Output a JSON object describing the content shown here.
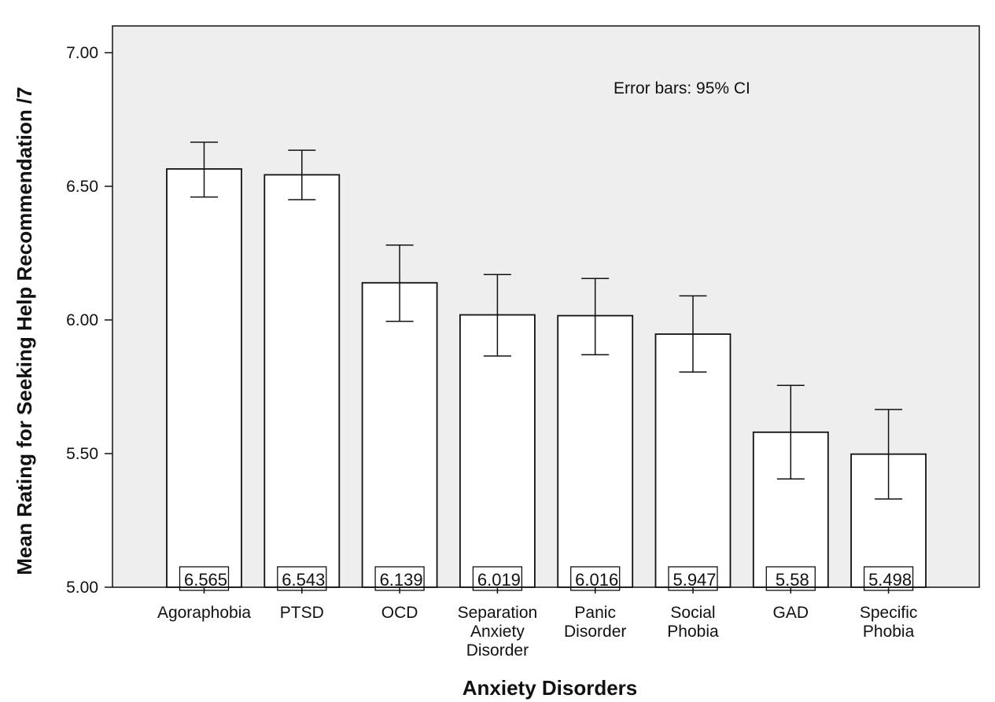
{
  "chart_data": {
    "type": "bar",
    "title": "",
    "xlabel": "Anxiety Disorders",
    "ylabel": "Mean Rating for Seeking Help Recommendation /7",
    "annotation": "Error bars: 95% CI",
    "ylim": [
      5.0,
      7.1
    ],
    "yticks": [
      {
        "value": 5.0,
        "label": "5.00"
      },
      {
        "value": 5.5,
        "label": "5.50"
      },
      {
        "value": 6.0,
        "label": "6.00"
      },
      {
        "value": 6.5,
        "label": "6.50"
      },
      {
        "value": 7.0,
        "label": "7.00"
      }
    ],
    "categories": [
      [
        "Agoraphobia"
      ],
      [
        "PTSD"
      ],
      [
        "OCD"
      ],
      [
        "Separation",
        "Anxiety",
        "Disorder"
      ],
      [
        "Panic",
        "Disorder"
      ],
      [
        "Social",
        "Phobia"
      ],
      [
        "GAD"
      ],
      [
        "Specific",
        "Phobia"
      ]
    ],
    "values": [
      6.565,
      6.543,
      6.139,
      6.019,
      6.016,
      5.947,
      5.58,
      5.498
    ],
    "value_labels": [
      "6.565",
      "6.543",
      "6.139",
      "6.019",
      "6.016",
      "5.947",
      "5.58",
      "5.498"
    ],
    "ci_low": [
      6.46,
      6.45,
      5.995,
      5.865,
      5.87,
      5.805,
      5.405,
      5.33
    ],
    "ci_high": [
      6.665,
      6.635,
      6.28,
      6.17,
      6.155,
      6.09,
      5.755,
      5.665
    ],
    "grid": false,
    "colors": {
      "plot_bg": "#eeeeee",
      "bar_fill": "#ffffff",
      "stroke": "#111111"
    }
  }
}
